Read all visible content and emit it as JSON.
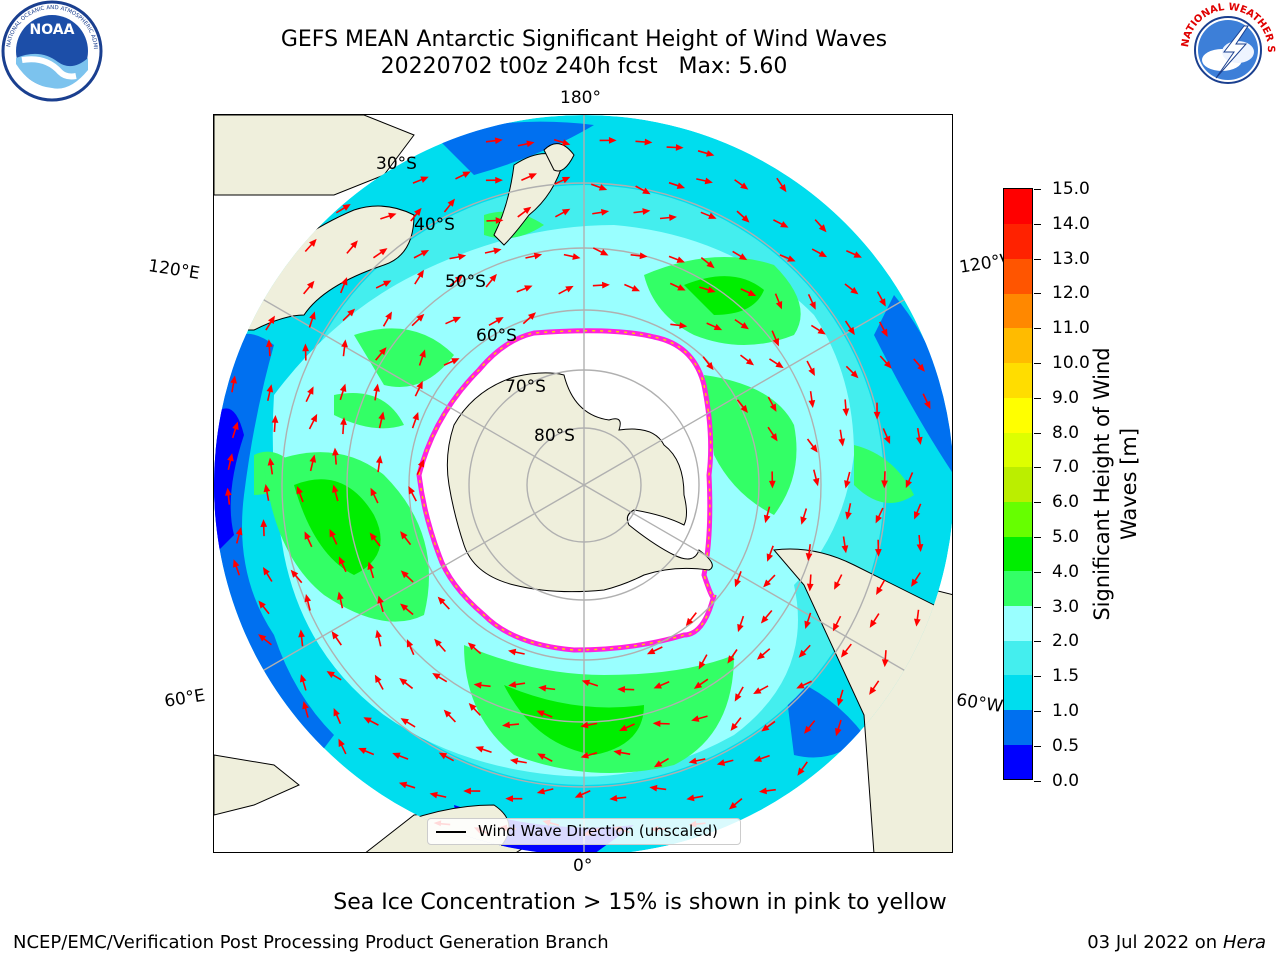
{
  "title": {
    "line1": "GEFS MEAN Antarctic Significant Height of Wind Waves",
    "line2": "20220702 t00z 240h fcst   Max: 5.60"
  },
  "logos": {
    "left": {
      "name": "NOAA",
      "ring_text": "NATIONAL OCEANIC AND ATMOSPHERIC ADMINISTRATION · U.S. DEPARTMENT OF COMMERCE"
    },
    "right": {
      "name": "NATIONAL WEATHER SERVICE"
    }
  },
  "map": {
    "projection": "south-polar-stereographic",
    "longitude_labels": {
      "top": "180°",
      "bottom": "0°",
      "left_upper": "120°E",
      "left_lower": "60°E",
      "right_upper": "120°W",
      "right_lower": "60°W"
    },
    "latitude_labels": [
      "30°S",
      "40°S",
      "50°S",
      "60°S",
      "70°S",
      "80°S"
    ],
    "legend_label": "Wind Wave Direction (unscaled)",
    "colors": {
      "land": "#efefdc",
      "ice": "#ffffff",
      "ice_edge": "#ff22dd",
      "arrow": "#ff0000",
      "grid": "#b0b0b0"
    }
  },
  "colorbar": {
    "label": "Significant Height of Wind Waves [m]",
    "label_lines": [
      "Significant Height of Wind",
      "Waves [m]"
    ],
    "ticks": [
      "15.0",
      "14.0",
      "13.0",
      "12.0",
      "11.0",
      "10.0",
      "9.0",
      "8.0",
      "7.0",
      "6.0",
      "5.0",
      "4.0",
      "3.0",
      "2.0",
      "1.5",
      "1.0",
      "0.5",
      "0.0"
    ],
    "colors_bottom_to_top": [
      "#0000ff",
      "#0070f0",
      "#00ddee",
      "#44eeee",
      "#99ffff",
      "#33ff66",
      "#00ee00",
      "#66ff00",
      "#bbee00",
      "#ddff00",
      "#ffff00",
      "#ffdd00",
      "#ffbb00",
      "#ff8800",
      "#ff5500",
      "#ff2200",
      "#ff0000"
    ]
  },
  "caption": "Sea Ice Concentration > 15% is shown in pink to yellow",
  "footer": {
    "left": "NCEP/EMC/Verification Post Processing Product Generation Branch",
    "right_prefix": "03 Jul 2022 on ",
    "right_host": "Hera"
  }
}
